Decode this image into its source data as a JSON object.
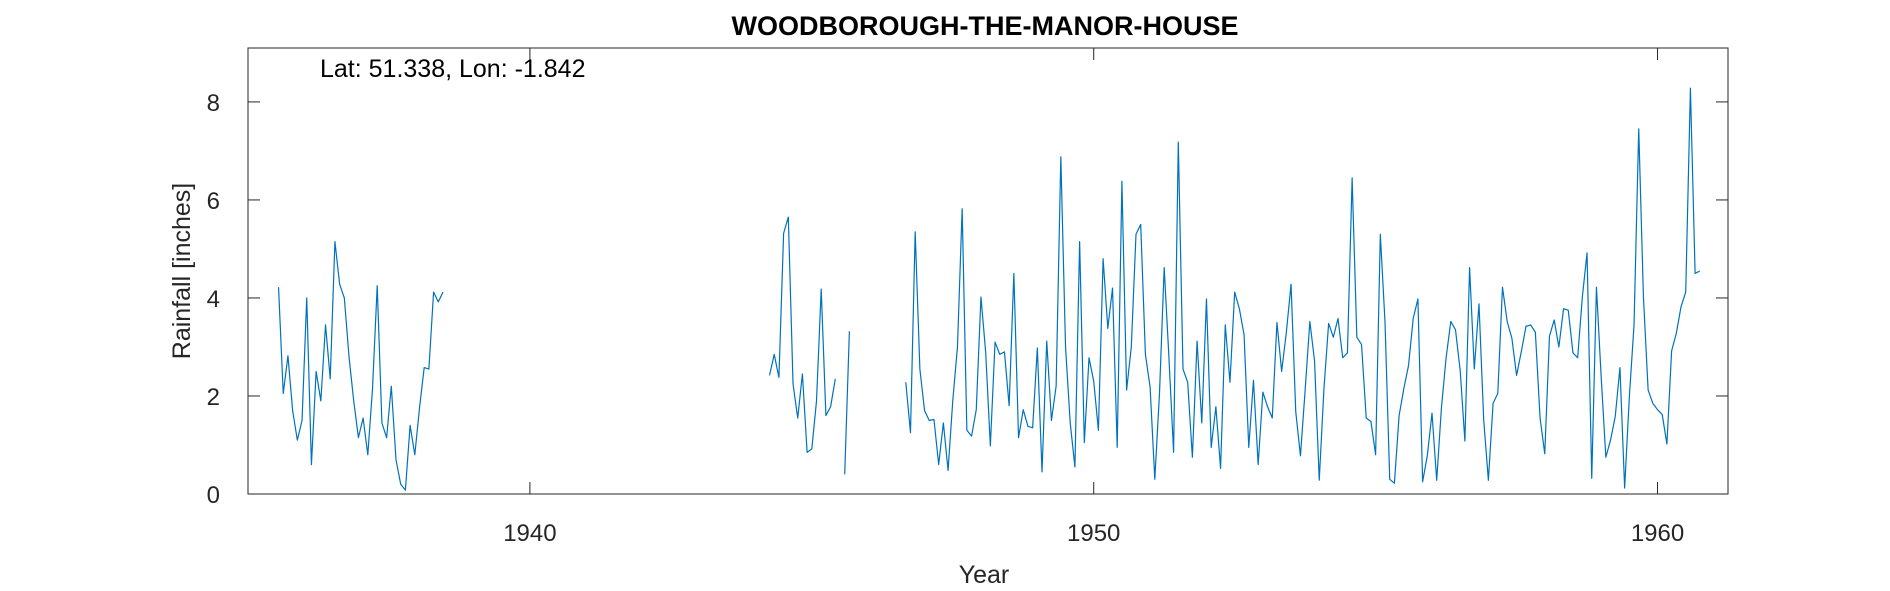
{
  "chart_data": {
    "type": "line",
    "title": "WOODBOROUGH-THE-MANOR-HOUSE",
    "xlabel": "Year",
    "ylabel": "Rainfall [inches]",
    "annotation": "Lat: 51.338, Lon: -1.842",
    "xlim": [
      1935,
      1961.25
    ],
    "ylim": [
      0,
      9.1
    ],
    "xticks": [
      1940,
      1950,
      1960
    ],
    "yticks": [
      0,
      2,
      4,
      6,
      8
    ],
    "grid": false,
    "line_color": "#0072BD",
    "series": [
      {
        "segments": [
          {
            "start": 1935.5417,
            "values": [
              4.22,
              2.05,
              2.82,
              1.7,
              1.1,
              1.5,
              4.0,
              0.6,
              2.5,
              1.9,
              3.45,
              2.35,
              5.15,
              4.28,
              4.0,
              2.8,
              1.9,
              1.15,
              1.55,
              0.8,
              2.15,
              4.25,
              1.45,
              1.15,
              2.2,
              0.7,
              0.2,
              0.08,
              1.4,
              0.8,
              1.75,
              2.58,
              2.55,
              4.12,
              3.92,
              4.12
            ]
          },
          {
            "start": 1944.25,
            "values": [
              2.42,
              2.85,
              2.38,
              5.32,
              5.65,
              2.25,
              1.55,
              2.45,
              0.85,
              0.92,
              1.9,
              4.18,
              1.6,
              1.78,
              2.35
            ]
          },
          {
            "start": 1945.5833,
            "values": [
              0.4,
              3.32
            ]
          },
          {
            "start": 1946.6667,
            "values": [
              2.28,
              1.25,
              5.35,
              2.55,
              1.7,
              1.5,
              1.52,
              0.6,
              1.45,
              0.48,
              1.9,
              3.0,
              5.82,
              1.3,
              1.18,
              1.72,
              4.02,
              2.9,
              0.98,
              3.1,
              2.85,
              2.9,
              1.8,
              4.5,
              1.15,
              1.72,
              1.38,
              1.35,
              2.98,
              0.45,
              3.12,
              1.5,
              2.2,
              6.88,
              3.0,
              1.45,
              0.55,
              5.15,
              1.05,
              2.78,
              2.3,
              1.3,
              4.8,
              3.38,
              4.2,
              0.95,
              6.38,
              2.12,
              3.0,
              5.3,
              5.5,
              2.85,
              2.18,
              0.3,
              2.05,
              4.62,
              2.8,
              0.85,
              7.18,
              2.55,
              2.28,
              0.75,
              3.12,
              1.45,
              3.98,
              0.95,
              1.78,
              0.52,
              3.45,
              2.28,
              4.12,
              3.78,
              3.25,
              0.95,
              2.32,
              0.6,
              2.08,
              1.78,
              1.55,
              3.5,
              2.5,
              3.3,
              4.28,
              1.68,
              0.78,
              2.12,
              3.52,
              2.72,
              0.28,
              2.15,
              3.48,
              3.2,
              3.58,
              2.78,
              2.88,
              6.45,
              3.2,
              3.05,
              1.55,
              1.48,
              0.8,
              5.3,
              3.5,
              0.3,
              0.22,
              1.6,
              2.15,
              2.62,
              3.58,
              3.98,
              0.25,
              0.78,
              1.65,
              0.28,
              1.75,
              2.78,
              3.52,
              3.35,
              2.52,
              1.08,
              4.62,
              2.55,
              3.88,
              1.52,
              0.28,
              1.85,
              2.05,
              4.22,
              3.52,
              3.18,
              2.42,
              2.9,
              3.42,
              3.45,
              3.3,
              1.55,
              0.82,
              3.22,
              3.55,
              3.0,
              3.78,
              3.75,
              2.88,
              2.78,
              4.02,
              4.92,
              0.32,
              4.22,
              2.4,
              0.75,
              1.1,
              1.58,
              2.58,
              0.12,
              1.98,
              3.45,
              7.45,
              4.02,
              2.12,
              1.85,
              1.72,
              1.62,
              1.02,
              2.92,
              3.28,
              3.82,
              4.12,
              8.28,
              4.5,
              4.55
            ]
          }
        ]
      }
    ]
  }
}
